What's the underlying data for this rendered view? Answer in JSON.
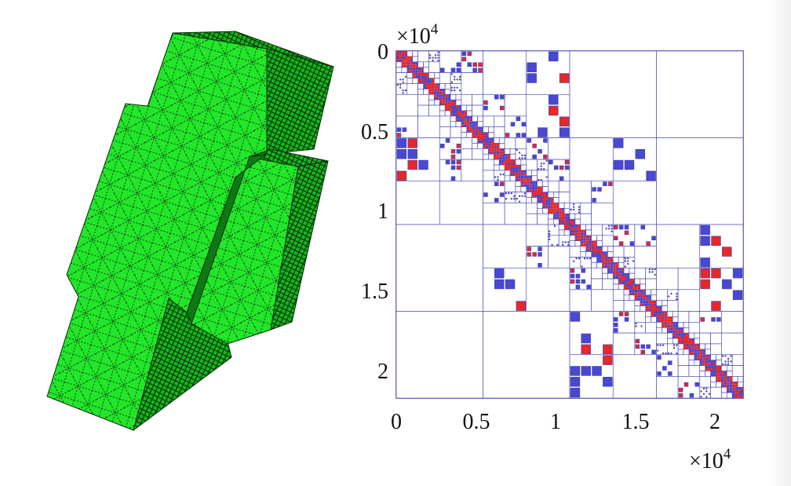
{
  "mesh_figure": {
    "color_fill": "#22e62a",
    "color_fill_dark": "#10c418",
    "color_lines": "#0a2a0a"
  },
  "matrix_figure": {
    "x_ticks": [
      "0",
      "0.5",
      "1",
      "1.5",
      "2"
    ],
    "y_ticks": [
      "0",
      "0.5",
      "1",
      "1.5",
      "2"
    ],
    "x_exponent_base": "×10",
    "x_exponent_power": "4",
    "y_exponent_base": "×10",
    "y_exponent_power": "4",
    "colors": {
      "block_lines": "#3c3cb4",
      "full_rank": "#e62828",
      "low_rank": "#4848d0"
    }
  }
}
